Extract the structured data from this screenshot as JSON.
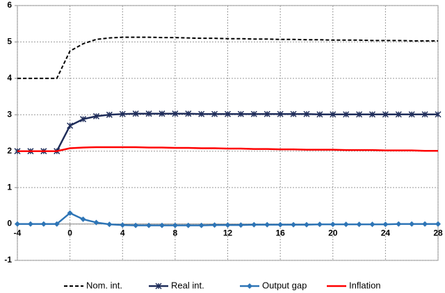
{
  "chart_data": {
    "type": "line",
    "x": [
      -4,
      -3,
      -2,
      -1,
      0,
      1,
      2,
      3,
      4,
      5,
      6,
      7,
      8,
      9,
      10,
      11,
      12,
      13,
      14,
      15,
      16,
      17,
      18,
      19,
      20,
      21,
      22,
      23,
      24,
      25,
      26,
      27,
      28
    ],
    "xlim": [
      -4,
      28
    ],
    "xticks": [
      -4,
      0,
      4,
      8,
      12,
      16,
      20,
      24,
      28
    ],
    "ylim": [
      -1,
      6
    ],
    "yticks": [
      -1,
      0,
      1,
      2,
      3,
      4,
      5,
      6
    ],
    "grid": true,
    "legend": "bottom",
    "series": [
      {
        "name": "Nom. int.",
        "color": "#000000",
        "style": "dashed",
        "marker": "none",
        "values": [
          4,
          4,
          4,
          4,
          4.75,
          4.95,
          5.07,
          5.11,
          5.13,
          5.13,
          5.13,
          5.12,
          5.12,
          5.11,
          5.1,
          5.1,
          5.09,
          5.09,
          5.08,
          5.08,
          5.07,
          5.07,
          5.06,
          5.06,
          5.05,
          5.05,
          5.05,
          5.04,
          5.04,
          5.04,
          5.03,
          5.03,
          5.03
        ]
      },
      {
        "name": "Real int.",
        "color": "#1f2d5a",
        "style": "solid",
        "marker": "star",
        "values": [
          2,
          2,
          2,
          2,
          2.7,
          2.88,
          2.96,
          3,
          3.02,
          3.03,
          3.03,
          3.03,
          3.03,
          3.03,
          3.02,
          3.02,
          3.02,
          3.02,
          3.02,
          3.02,
          3.02,
          3.02,
          3.02,
          3.01,
          3.01,
          3.01,
          3.01,
          3.01,
          3.01,
          3.01,
          3.01,
          3.01,
          3.01
        ]
      },
      {
        "name": "Output gap",
        "color": "#2e75b6",
        "style": "solid",
        "marker": "diamond",
        "values": [
          0,
          0,
          0,
          0,
          0.3,
          0.13,
          0.04,
          -0.01,
          -0.03,
          -0.04,
          -0.04,
          -0.04,
          -0.04,
          -0.04,
          -0.04,
          -0.03,
          -0.03,
          -0.03,
          -0.02,
          -0.02,
          -0.02,
          -0.02,
          -0.02,
          -0.01,
          -0.01,
          -0.01,
          -0.01,
          -0.01,
          -0.01,
          0,
          0,
          0,
          0
        ]
      },
      {
        "name": "Inflation",
        "color": "#ff0000",
        "style": "solid",
        "marker": "none",
        "values": [
          2,
          2,
          2,
          2,
          2.08,
          2.1,
          2.11,
          2.11,
          2.11,
          2.11,
          2.1,
          2.1,
          2.09,
          2.09,
          2.08,
          2.08,
          2.07,
          2.07,
          2.06,
          2.06,
          2.05,
          2.05,
          2.04,
          2.04,
          2.04,
          2.03,
          2.03,
          2.03,
          2.02,
          2.02,
          2.02,
          2.01,
          2.01
        ]
      }
    ]
  }
}
